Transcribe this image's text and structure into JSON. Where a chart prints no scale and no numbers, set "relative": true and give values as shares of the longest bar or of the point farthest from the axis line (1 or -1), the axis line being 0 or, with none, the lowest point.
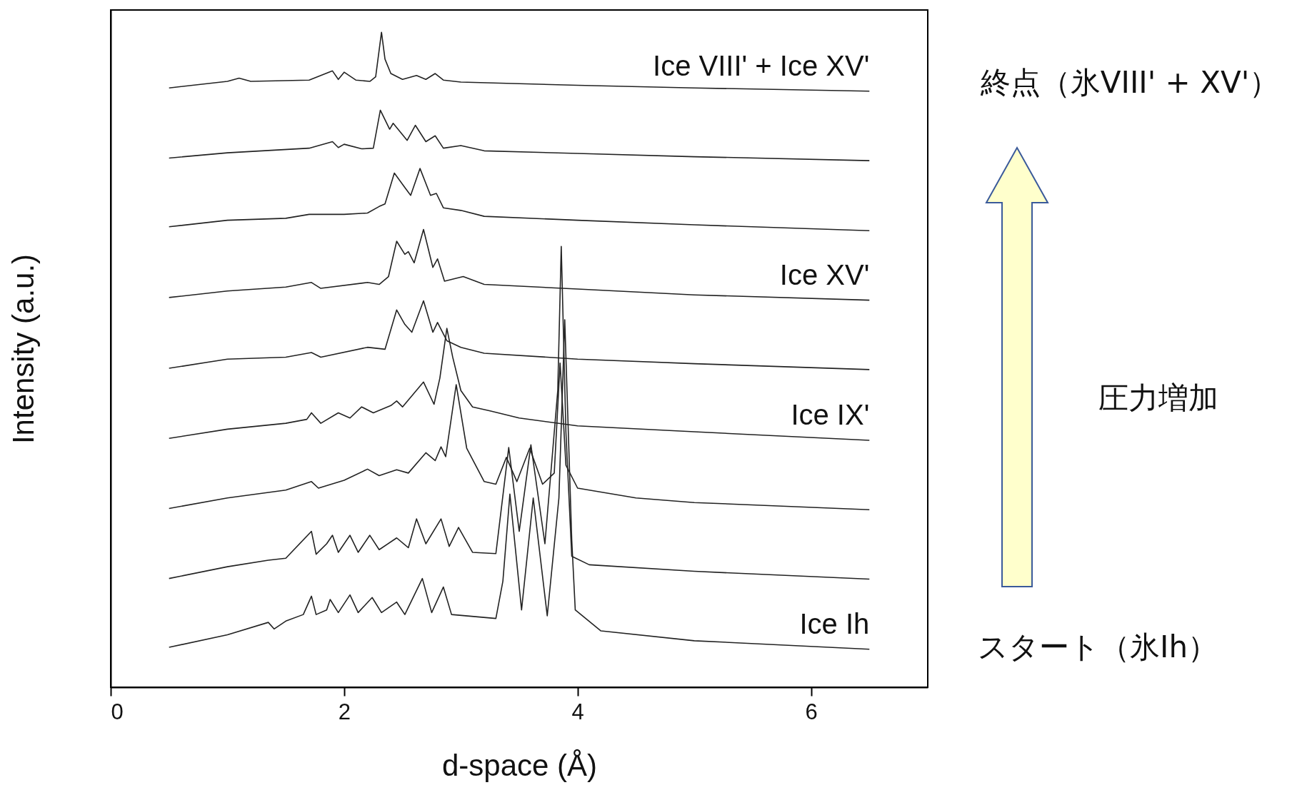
{
  "chart_data": {
    "type": "line",
    "relative": true,
    "xlabel": "d-space (Å)",
    "ylabel": "Intensity (a.u.)",
    "xlim": [
      0,
      7
    ],
    "xticks": [
      0,
      2,
      4,
      6
    ],
    "annotations": [
      "終点（氷VIII' + XV'）",
      "圧力増加",
      "スタート（氷Ih）"
    ],
    "series": [
      {
        "name": "Ice Ih",
        "color": "#222222",
        "x": [
          0.5,
          1.0,
          1.35,
          1.4,
          1.5,
          1.65,
          1.72,
          1.76,
          1.85,
          1.88,
          1.95,
          2.05,
          2.12,
          2.24,
          2.32,
          2.45,
          2.52,
          2.67,
          2.75,
          2.85,
          2.92,
          3.3,
          3.36,
          3.42,
          3.52,
          3.62,
          3.74,
          3.84,
          3.89,
          3.95,
          3.98,
          4.2,
          5,
          6.5
        ],
        "values": [
          0.061,
          0.08,
          0.099,
          0.089,
          0.101,
          0.111,
          0.139,
          0.111,
          0.118,
          0.134,
          0.114,
          0.141,
          0.114,
          0.137,
          0.114,
          0.13,
          0.111,
          0.166,
          0.114,
          0.153,
          0.111,
          0.105,
          0.162,
          0.295,
          0.118,
          0.289,
          0.109,
          0.289,
          0.561,
          0.225,
          0.118,
          0.086,
          0.071,
          0.058
        ]
      },
      {
        "color": "#222222",
        "x": [
          0.5,
          1.0,
          1.35,
          1.5,
          1.72,
          1.76,
          1.85,
          1.9,
          1.95,
          2.05,
          2.12,
          2.22,
          2.3,
          2.45,
          2.55,
          2.62,
          2.7,
          2.83,
          2.9,
          2.98,
          3.1,
          3.3,
          3.41,
          3.5,
          3.6,
          3.72,
          3.83,
          3.86,
          3.9,
          3.95,
          4.1,
          5,
          6.5
        ],
        "values": [
          0.166,
          0.184,
          0.194,
          0.197,
          0.238,
          0.203,
          0.219,
          0.232,
          0.206,
          0.232,
          0.206,
          0.232,
          0.21,
          0.228,
          0.213,
          0.257,
          0.219,
          0.257,
          0.215,
          0.244,
          0.206,
          0.204,
          0.366,
          0.238,
          0.37,
          0.219,
          0.453,
          0.673,
          0.39,
          0.2,
          0.187,
          0.177,
          0.165
        ]
      },
      {
        "color": "#222222",
        "x": [
          0.5,
          1.0,
          1.5,
          1.72,
          1.78,
          2.0,
          2.2,
          2.3,
          2.45,
          2.55,
          2.7,
          2.78,
          2.83,
          2.87,
          2.96,
          3.05,
          3.2,
          3.3,
          3.39,
          3.48,
          3.59,
          3.7,
          3.8,
          3.85,
          3.9,
          4.0,
          4.5,
          5,
          6.5
        ],
        "values": [
          0.273,
          0.289,
          0.301,
          0.314,
          0.304,
          0.316,
          0.333,
          0.323,
          0.332,
          0.327,
          0.358,
          0.346,
          0.367,
          0.352,
          0.462,
          0.365,
          0.314,
          0.31,
          0.351,
          0.314,
          0.365,
          0.31,
          0.327,
          0.495,
          0.339,
          0.304,
          0.289,
          0.282,
          0.271
        ]
      },
      {
        "name": "Ice IX'",
        "color": "#222222",
        "x": [
          0.5,
          1.0,
          1.5,
          1.68,
          1.72,
          1.8,
          1.95,
          2.05,
          2.15,
          2.25,
          2.4,
          2.45,
          2.5,
          2.68,
          2.77,
          2.82,
          2.88,
          2.93,
          3.0,
          3.1,
          3.25,
          3.5,
          4,
          5,
          6.5
        ],
        "values": [
          0.38,
          0.394,
          0.403,
          0.409,
          0.419,
          0.403,
          0.419,
          0.411,
          0.428,
          0.419,
          0.43,
          0.437,
          0.428,
          0.466,
          0.432,
          0.472,
          0.548,
          0.504,
          0.453,
          0.428,
          0.422,
          0.411,
          0.399,
          0.39,
          0.377
        ]
      },
      {
        "color": "#222222",
        "x": [
          0.5,
          1.0,
          1.5,
          1.72,
          1.8,
          2.2,
          2.35,
          2.45,
          2.52,
          2.58,
          2.68,
          2.76,
          2.8,
          2.88,
          3.0,
          3.2,
          4,
          5,
          6.5
        ],
        "values": [
          0.487,
          0.501,
          0.504,
          0.511,
          0.504,
          0.519,
          0.516,
          0.576,
          0.554,
          0.542,
          0.59,
          0.542,
          0.557,
          0.529,
          0.519,
          0.51,
          0.501,
          0.494,
          0.485
        ]
      },
      {
        "name": "Ice XV'",
        "color": "#222222",
        "x": [
          0.5,
          1.0,
          1.5,
          1.72,
          1.8,
          2.2,
          2.3,
          2.38,
          2.45,
          2.52,
          2.55,
          2.6,
          2.68,
          2.76,
          2.8,
          2.86,
          3.02,
          3.2,
          4,
          5,
          6.5
        ],
        "values": [
          0.595,
          0.605,
          0.611,
          0.618,
          0.609,
          0.618,
          0.615,
          0.627,
          0.681,
          0.661,
          0.665,
          0.648,
          0.699,
          0.641,
          0.654,
          0.62,
          0.627,
          0.615,
          0.608,
          0.599,
          0.591
        ]
      },
      {
        "color": "#222222",
        "x": [
          0.5,
          1.0,
          1.5,
          1.7,
          2.0,
          2.2,
          2.3,
          2.35,
          2.43,
          2.52,
          2.57,
          2.65,
          2.74,
          2.79,
          2.85,
          3.0,
          3.2,
          4,
          5,
          6.5
        ],
        "values": [
          0.703,
          0.713,
          0.716,
          0.722,
          0.722,
          0.724,
          0.734,
          0.738,
          0.785,
          0.763,
          0.751,
          0.792,
          0.751,
          0.754,
          0.732,
          0.728,
          0.719,
          0.713,
          0.706,
          0.697
        ]
      },
      {
        "color": "#222222",
        "x": [
          0.5,
          1.0,
          1.7,
          1.9,
          1.95,
          2.0,
          2.15,
          2.25,
          2.31,
          2.39,
          2.42,
          2.54,
          2.61,
          2.7,
          2.78,
          2.85,
          3.0,
          3.2,
          4,
          5,
          6.5
        ],
        "values": [
          0.808,
          0.816,
          0.823,
          0.833,
          0.824,
          0.829,
          0.822,
          0.823,
          0.881,
          0.852,
          0.861,
          0.835,
          0.858,
          0.833,
          0.842,
          0.823,
          0.827,
          0.819,
          0.815,
          0.81,
          0.804
        ]
      },
      {
        "name": "Ice VIII' + Ice XV'",
        "color": "#222222",
        "x": [
          0.5,
          1.0,
          1.1,
          1.2,
          1.7,
          1.9,
          1.95,
          2.0,
          2.1,
          2.22,
          2.27,
          2.32,
          2.35,
          2.4,
          2.5,
          2.62,
          2.7,
          2.78,
          2.85,
          3.0,
          4,
          5,
          6.5
        ],
        "values": [
          0.915,
          0.925,
          0.93,
          0.925,
          0.927,
          0.941,
          0.928,
          0.939,
          0.927,
          0.925,
          0.932,
          1.0,
          0.959,
          0.937,
          0.928,
          0.934,
          0.928,
          0.937,
          0.927,
          0.924,
          0.919,
          0.915,
          0.91
        ]
      }
    ]
  }
}
